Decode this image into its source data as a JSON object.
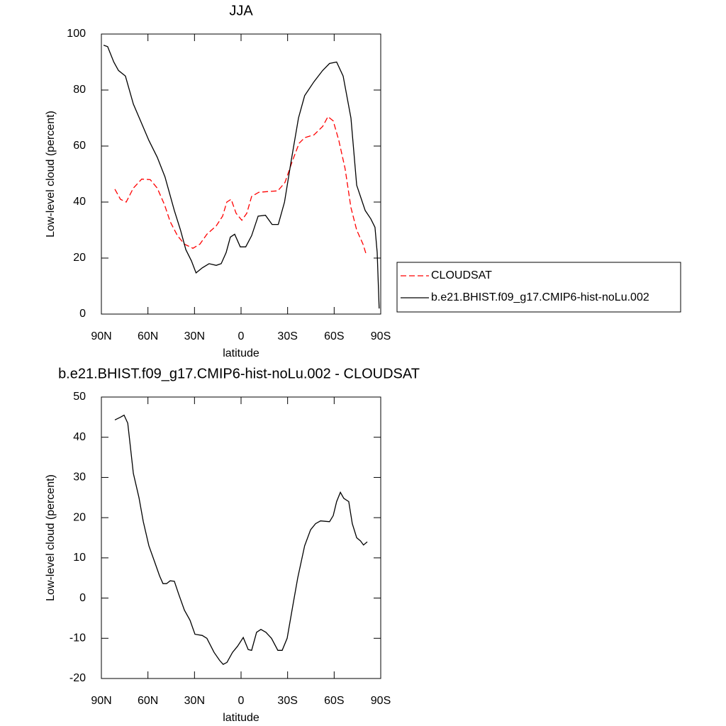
{
  "chart_data": [
    {
      "type": "line",
      "title": "JJA",
      "xlabel": "latitude",
      "ylabel": "Low-level cloud (percent)",
      "xlim": [
        90,
        -90
      ],
      "ylim": [
        0,
        100
      ],
      "xticks": [
        {
          "value": 90,
          "label": "90N"
        },
        {
          "value": 60,
          "label": "60N"
        },
        {
          "value": 30,
          "label": "30N"
        },
        0,
        {
          "value": -30,
          "label": "30S"
        },
        {
          "value": -60,
          "label": "60S"
        },
        {
          "value": -90,
          "label": "90S"
        }
      ],
      "yticks": [
        0,
        20,
        40,
        60,
        80,
        100
      ],
      "legend": "right",
      "series": [
        {
          "name": "CLOUDSAT",
          "color": "#ff0000",
          "linestyle": "dashed",
          "x": [
            81.3,
            77.7,
            74,
            69.4,
            64,
            58.5,
            54,
            49.3,
            45.7,
            41,
            36.5,
            31,
            26.5,
            22,
            16,
            11.9,
            9.2,
            6.4,
            3.2,
            -0.5,
            -3.7,
            -6.8,
            -11.4,
            -18.3,
            -23.7,
            -28.3,
            -33.3,
            -37.4,
            -41,
            -47,
            -52.6,
            -56,
            -59.4,
            -63,
            -67,
            -70.8,
            -74.5,
            -78.6,
            -80.8
          ],
          "values": [
            44.6,
            41,
            40,
            45,
            48.2,
            48,
            45,
            39,
            33,
            28,
            25,
            23.5,
            25,
            28.5,
            31.5,
            35,
            40,
            41,
            36,
            33.5,
            36,
            42,
            43.5,
            43.8,
            44,
            47,
            55,
            61,
            63,
            64,
            67,
            70.5,
            69,
            62,
            52,
            38,
            30,
            25,
            21
          ]
        },
        {
          "name": "b.e21.BHIST.f09_g17.CMIP6-hist-noLu.002",
          "color": "#000000",
          "linestyle": "solid",
          "x": [
            88.6,
            86,
            82,
            79,
            74.5,
            69.4,
            64,
            59.4,
            54,
            49,
            43,
            39,
            35.6,
            32,
            29,
            25,
            20.6,
            16,
            12.8,
            9.6,
            6.9,
            4.1,
            0.5,
            -3,
            -6.8,
            -11,
            -15.7,
            -20,
            -24,
            -28,
            -32.4,
            -37,
            -41,
            -47,
            -52.6,
            -57,
            -61.6,
            -65.8,
            -70.8,
            -74.5,
            -80,
            -83.6,
            -86.3,
            -87.7,
            -89
          ],
          "values": [
            96,
            95.5,
            90,
            87,
            85,
            75,
            68,
            62,
            56,
            49,
            37,
            30,
            23,
            19,
            14.7,
            16.5,
            18,
            17.4,
            18,
            22,
            27.5,
            28.5,
            24,
            24,
            28,
            35,
            35.3,
            32,
            32,
            40,
            55,
            70,
            78,
            83,
            87,
            89.5,
            90,
            85,
            70,
            46,
            37,
            34,
            31,
            22,
            2
          ]
        }
      ]
    },
    {
      "type": "line",
      "title": "b.e21.BHIST.f09_g17.CMIP6-hist-noLu.002 - CLOUDSAT",
      "xlabel": "latitude",
      "ylabel": "Low-level cloud (percent)",
      "xlim": [
        90,
        -90
      ],
      "ylim": [
        -20,
        50
      ],
      "xticks": [
        {
          "value": 90,
          "label": "90N"
        },
        {
          "value": 60,
          "label": "60N"
        },
        {
          "value": 30,
          "label": "30N"
        },
        0,
        {
          "value": -30,
          "label": "30S"
        },
        {
          "value": -60,
          "label": "60S"
        },
        {
          "value": -90,
          "label": "90S"
        }
      ],
      "yticks": [
        -20,
        -10,
        0,
        10,
        20,
        30,
        40,
        50
      ],
      "series": [
        {
          "color": "#000000",
          "linestyle": "solid",
          "x": [
            81.3,
            77.7,
            75.4,
            73,
            69.4,
            65.8,
            63,
            59.4,
            55.7,
            52.5,
            50.3,
            48,
            45.7,
            43,
            40.2,
            36.5,
            32.9,
            29.7,
            25,
            22,
            17.4,
            13.8,
            11.5,
            9.1,
            5.5,
            2.3,
            -1.4,
            -4.6,
            -6.8,
            -10,
            -12.8,
            -16,
            -19.6,
            -23.7,
            -26.5,
            -29.7,
            -33.3,
            -36.5,
            -41,
            -44.8,
            -48,
            -51.2,
            -57,
            -59.4,
            -61.6,
            -64,
            -66.2,
            -69.4,
            -71.7,
            -74.5,
            -77,
            -78.9,
            -81.3
          ],
          "values": [
            44.3,
            45,
            45.5,
            43.5,
            31,
            25,
            19,
            13,
            9,
            5.5,
            3.6,
            3.6,
            4.3,
            4.2,
            1,
            -3,
            -5.5,
            -9,
            -9.3,
            -10,
            -13.5,
            -15.5,
            -16.5,
            -16,
            -13.5,
            -12,
            -9.8,
            -12.8,
            -13,
            -8.5,
            -7.8,
            -8.5,
            -10,
            -13,
            -13,
            -10,
            -2,
            5,
            13,
            17,
            18.5,
            19.2,
            19,
            20.5,
            24,
            26.3,
            24.8,
            24,
            18.5,
            15,
            14.2,
            13.2,
            14
          ]
        }
      ]
    }
  ]
}
